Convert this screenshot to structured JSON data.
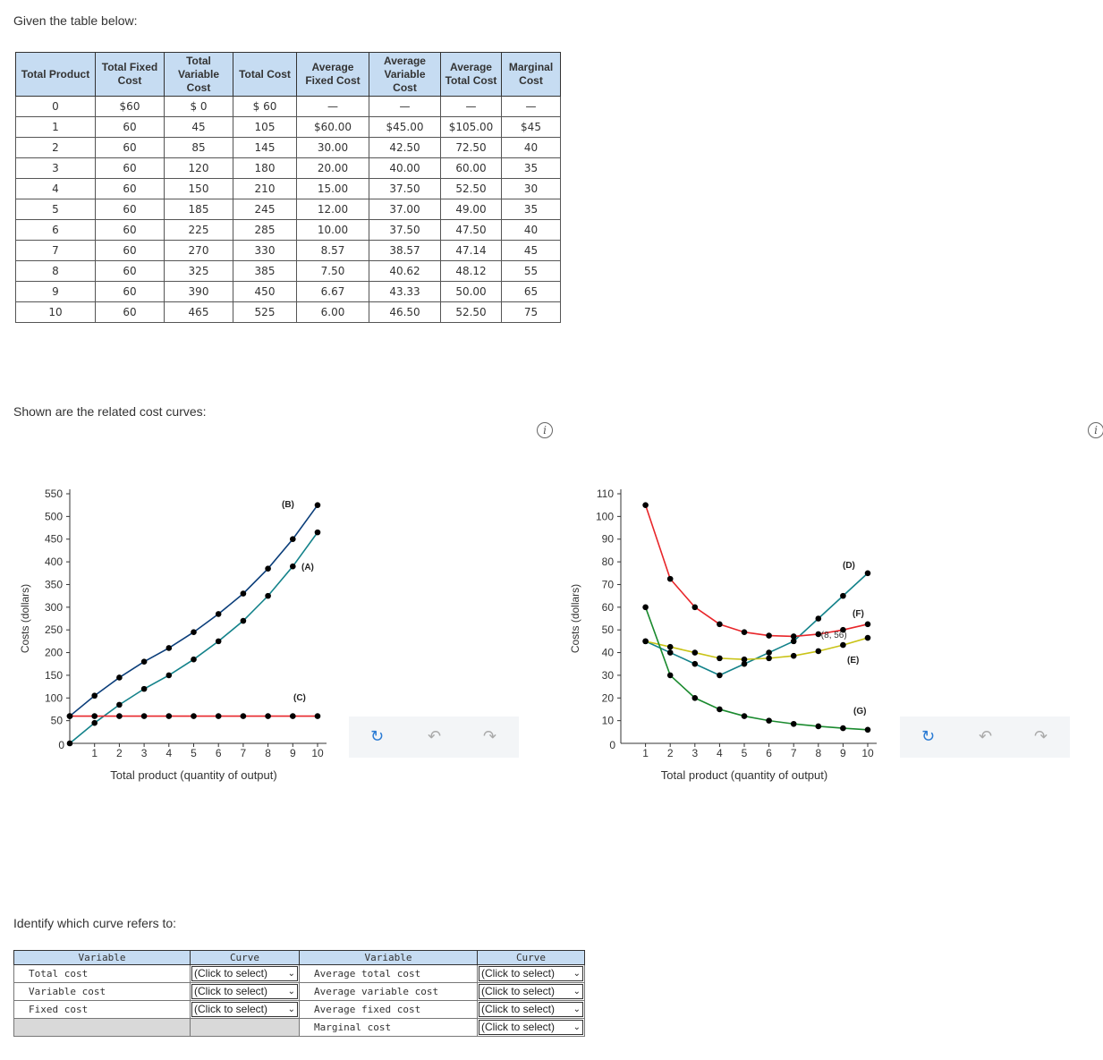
{
  "intro": "Given the table below:",
  "cost_table": {
    "headers": [
      "Total Product",
      "Total Fixed Cost",
      "Total Variable Cost",
      "Total Cost",
      "Average Fixed Cost",
      "Average Variable Cost",
      "Average Total Cost",
      "Marginal Cost"
    ],
    "rows": [
      [
        "0",
        "$60",
        "$ 0",
        "$ 60",
        "—",
        "—",
        "—",
        "—"
      ],
      [
        "1",
        "60",
        "45",
        "105",
        "$60.00",
        "$45.00",
        "$105.00",
        "$45"
      ],
      [
        "2",
        "60",
        "85",
        "145",
        "30.00",
        "42.50",
        "72.50",
        "40"
      ],
      [
        "3",
        "60",
        "120",
        "180",
        "20.00",
        "40.00",
        "60.00",
        "35"
      ],
      [
        "4",
        "60",
        "150",
        "210",
        "15.00",
        "37.50",
        "52.50",
        "30"
      ],
      [
        "5",
        "60",
        "185",
        "245",
        "12.00",
        "37.00",
        "49.00",
        "35"
      ],
      [
        "6",
        "60",
        "225",
        "285",
        "10.00",
        "37.50",
        "47.50",
        "40"
      ],
      [
        "7",
        "60",
        "270",
        "330",
        "8.57",
        "38.57",
        "47.14",
        "45"
      ],
      [
        "8",
        "60",
        "325",
        "385",
        "7.50",
        "40.62",
        "48.12",
        "55"
      ],
      [
        "9",
        "60",
        "390",
        "450",
        "6.67",
        "43.33",
        "50.00",
        "65"
      ],
      [
        "10",
        "60",
        "465",
        "525",
        "6.00",
        "46.50",
        "52.50",
        "75"
      ]
    ]
  },
  "curves_caption": "Shown are the related cost curves:",
  "chart_data": [
    {
      "type": "line",
      "xlabel": "Total product (quantity of output)",
      "ylabel": "Costs (dollars)",
      "xlim": [
        0,
        10
      ],
      "ylim": [
        0,
        550
      ],
      "x_ticks": [
        "1",
        "2",
        "3",
        "4",
        "5",
        "6",
        "7",
        "8",
        "9",
        "10"
      ],
      "y_ticks": [
        "50",
        "100",
        "150",
        "200",
        "250",
        "300",
        "350",
        "400",
        "450",
        "500",
        "550"
      ],
      "origin_label": "0",
      "x": [
        0,
        1,
        2,
        3,
        4,
        5,
        6,
        7,
        8,
        9,
        10
      ],
      "series": [
        {
          "name": "(B)",
          "color": "#0b3e7a",
          "values": [
            60,
            105,
            145,
            180,
            210,
            245,
            285,
            330,
            385,
            450,
            525
          ]
        },
        {
          "name": "(A)",
          "color": "#13828a",
          "values": [
            0,
            45,
            85,
            120,
            150,
            185,
            225,
            270,
            325,
            390,
            465
          ]
        },
        {
          "name": "(C)",
          "color": "#e8262a",
          "values": [
            60,
            60,
            60,
            60,
            60,
            60,
            60,
            60,
            60,
            60,
            60
          ]
        }
      ]
    },
    {
      "type": "line",
      "xlabel": "Total product (quantity of output)",
      "ylabel": "Costs (dollars)",
      "xlim": [
        0,
        10
      ],
      "ylim": [
        0,
        110
      ],
      "x_ticks": [
        "1",
        "2",
        "3",
        "4",
        "5",
        "6",
        "7",
        "8",
        "9",
        "10"
      ],
      "y_ticks": [
        "10",
        "20",
        "30",
        "40",
        "50",
        "60",
        "70",
        "80",
        "90",
        "100",
        "110"
      ],
      "origin_label": "0",
      "annotation": "(8, 56)",
      "series": [
        {
          "name": "(D)",
          "color": "#13828a",
          "x": [
            1,
            2,
            3,
            4,
            5,
            6,
            7,
            8,
            9,
            10
          ],
          "values": [
            45,
            40,
            35,
            30,
            35,
            40,
            45,
            55,
            65,
            75
          ]
        },
        {
          "name": "(F)",
          "color": "#e8262a",
          "x": [
            1,
            2,
            3,
            4,
            5,
            6,
            7,
            8,
            9,
            10
          ],
          "values": [
            105,
            72.5,
            60,
            52.5,
            49,
            47.5,
            47.14,
            48.12,
            50,
            52.5
          ]
        },
        {
          "name": "(E)",
          "color": "#c9c317",
          "x": [
            1,
            2,
            3,
            4,
            5,
            6,
            7,
            8,
            9,
            10
          ],
          "values": [
            45,
            42.5,
            40,
            37.5,
            37,
            37.5,
            38.57,
            40.62,
            43.33,
            46.5
          ]
        },
        {
          "name": "(G)",
          "color": "#1a8a2e",
          "x": [
            1,
            2,
            3,
            4,
            5,
            6,
            7,
            8,
            9,
            10
          ],
          "values": [
            60,
            30,
            20,
            15,
            12,
            10,
            8.57,
            7.5,
            6.67,
            6
          ]
        }
      ]
    }
  ],
  "info_symbol": "i",
  "toolbar": {
    "reset_icon": "↻",
    "undo_icon": "↶",
    "redo_icon": "↷"
  },
  "question": "Identify which curve refers to:",
  "answer_table": {
    "headers": [
      "Variable",
      "Curve",
      "Variable",
      "Curve"
    ],
    "left_rows": [
      "Total cost",
      "Variable cost",
      "Fixed cost"
    ],
    "right_rows": [
      "Average total cost",
      "Average variable cost",
      "Average fixed cost",
      "Marginal cost"
    ],
    "select_placeholder": "(Click to select)",
    "select_arrow": "⌄"
  },
  "colors": {
    "header_bg": "#c6dcf2",
    "toolbar_bg": "#f3f5f7",
    "grey_row": "#d9d9d9"
  }
}
